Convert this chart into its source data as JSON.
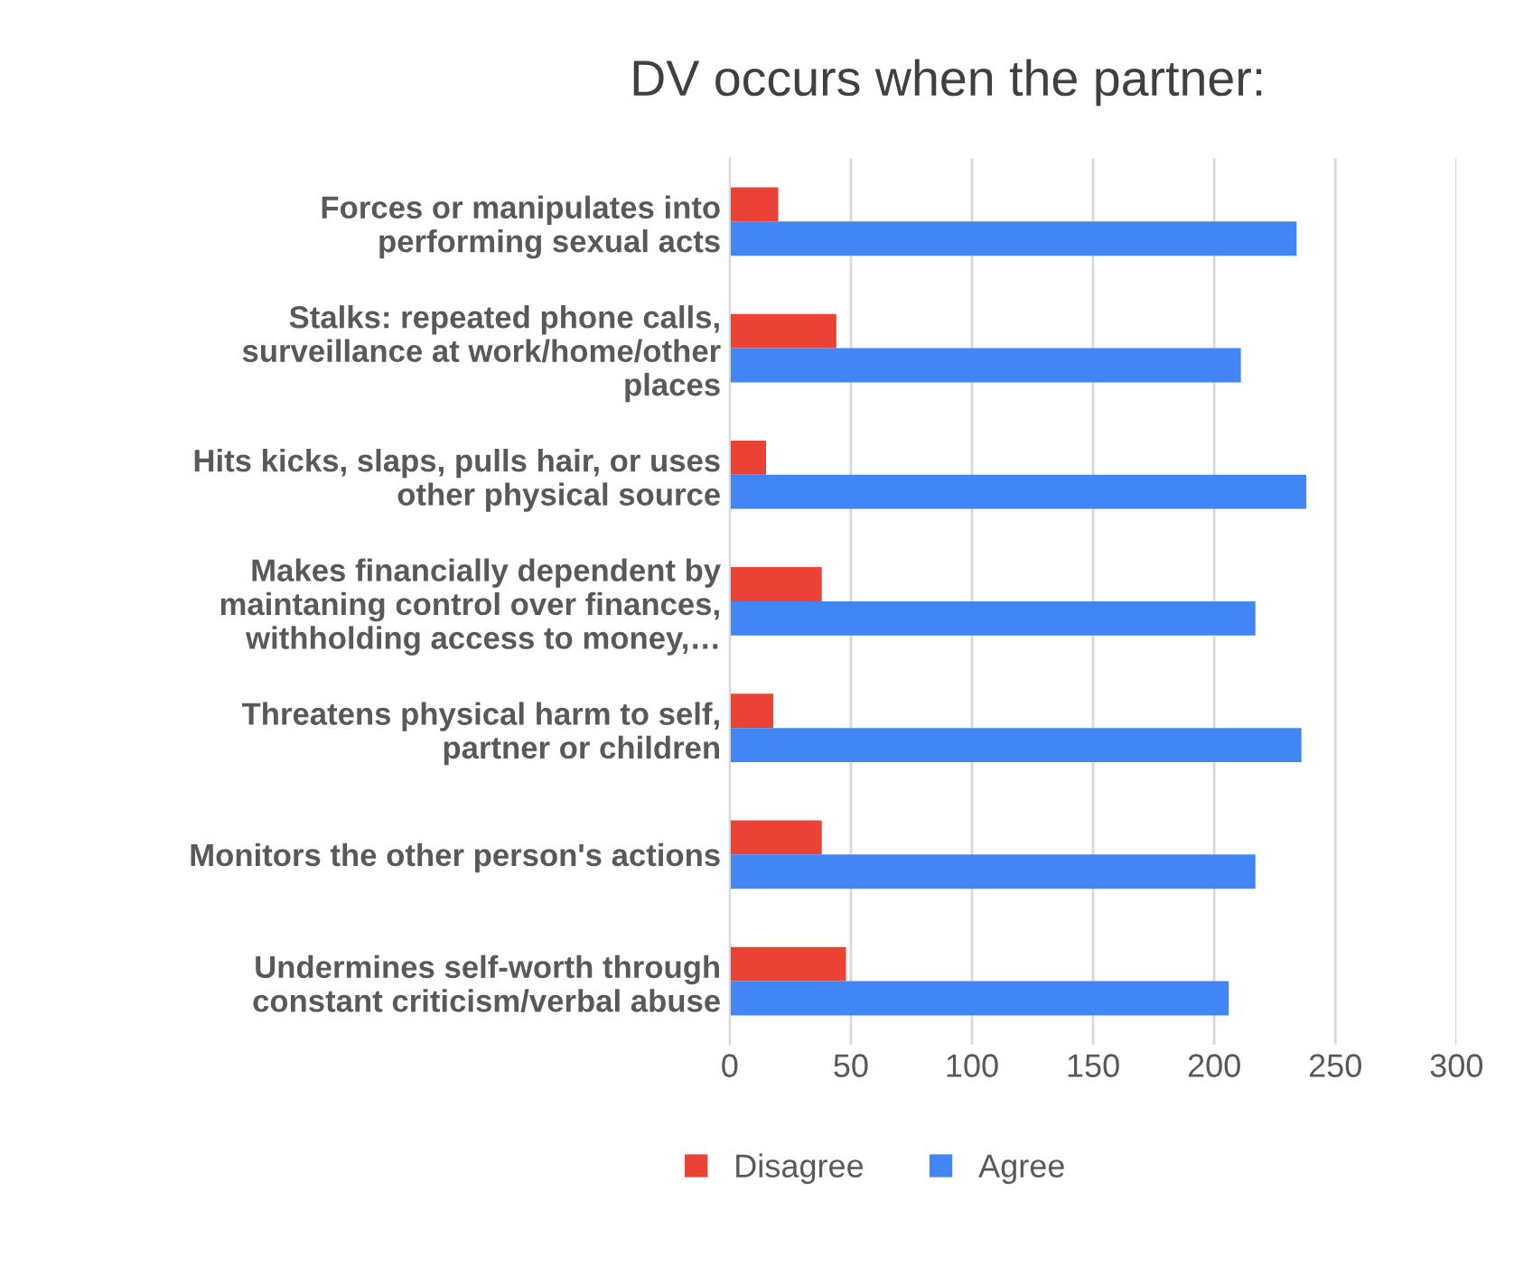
{
  "chart_data": {
    "type": "bar",
    "orientation": "horizontal",
    "title": "DV occurs when the partner:",
    "categories": [
      "Forces or manipulates into\nperforming sexual acts",
      "Stalks: repeated phone calls,\nsurveillance at work/home/other\nplaces",
      "Hits kicks, slaps, pulls hair, or uses\nother physical source",
      "Makes financially dependent by\nmaintaning control over finances,\nwithholding access to money,…",
      "Threatens physical harm to self,\npartner or children",
      "Monitors the other person's actions",
      "Undermines self-worth through\nconstant criticism/verbal abuse"
    ],
    "series": [
      {
        "name": "Disagree",
        "color": "#ea4335",
        "values": [
          20,
          44,
          15,
          38,
          18,
          38,
          48
        ]
      },
      {
        "name": "Agree",
        "color": "#4285f4",
        "values": [
          234,
          211,
          238,
          217,
          236,
          217,
          206
        ]
      }
    ],
    "xlim": [
      0,
      300
    ],
    "xticks": [
      0,
      50,
      100,
      150,
      200,
      250,
      300
    ],
    "grid": "x",
    "legend": "bottom"
  }
}
